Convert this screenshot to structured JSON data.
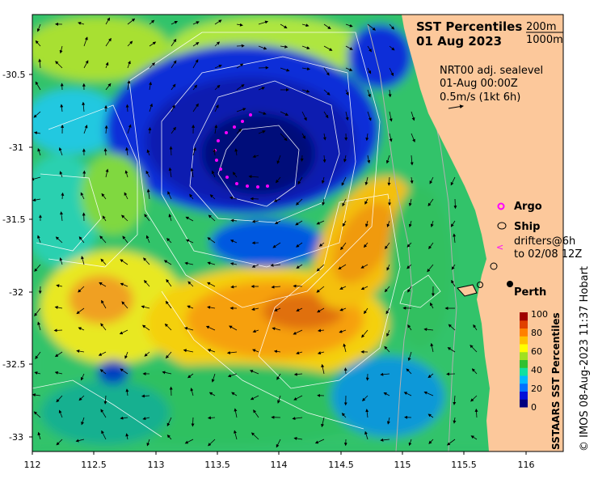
{
  "map": {
    "title": "SST Percentiles",
    "date": "01 Aug 2023",
    "isobath_labels": [
      "200m",
      "1000m"
    ],
    "current_note": [
      "NRT00 adj. sealevel",
      "01-Aug 00:00Z",
      "0.5m/s (1kt 6h)"
    ],
    "legend": {
      "argo": "Argo",
      "ship": "Ship",
      "drifters": [
        "drifters@6h",
        "to 02/08 12Z"
      ]
    },
    "city": "Perth",
    "colorbar": {
      "title": "SSTAARS SST Percentiles",
      "ticks": [
        "0",
        "20",
        "40",
        "60",
        "80",
        "100"
      ],
      "colors": [
        "#00007f",
        "#0010d8",
        "#0070ff",
        "#00b8ff",
        "#10e0a0",
        "#30c030",
        "#a0e020",
        "#ffff00",
        "#ffc000",
        "#ff8000",
        "#e04000",
        "#a00000"
      ]
    },
    "credit": "© IMOS 08-Aug-2023 11:37 Hobart",
    "x_ticks": [
      "112",
      "112.5",
      "113",
      "113.5",
      "114",
      "114.5",
      "115",
      "115.5",
      "116"
    ],
    "y_ticks": [
      "-30.5",
      "-31",
      "-31.5",
      "-32",
      "-32.5",
      "-33"
    ],
    "land_color": "#fcc89b",
    "city_coord": [
      115.86,
      -31.95
    ]
  }
}
